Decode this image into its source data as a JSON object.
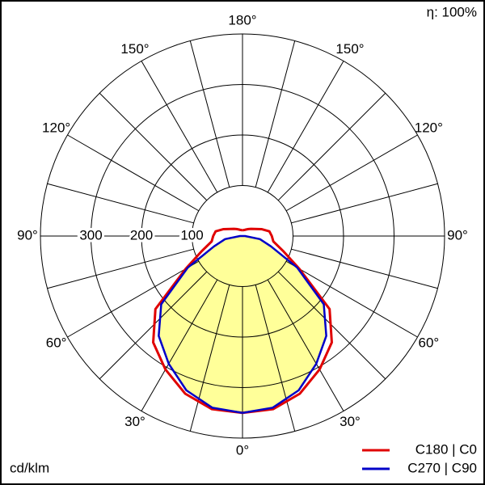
{
  "chart_data": {
    "type": "polar",
    "note_top_right": "η: 100%",
    "unit_label": "cd/klm",
    "angles": [
      0,
      10,
      20,
      30,
      40,
      50,
      60,
      70,
      80,
      90,
      100,
      110,
      120,
      130,
      140,
      150,
      160,
      170,
      180
    ],
    "series": [
      {
        "name": "C180 | C0",
        "color": "#e00000",
        "values": [
          350,
          348,
          332,
          305,
          275,
          225,
          130,
          85,
          62,
          58,
          54,
          40,
          28,
          22,
          18,
          15,
          13,
          12,
          11
        ]
      },
      {
        "name": "C270 | C90",
        "color": "#0000c8",
        "values": [
          350,
          345,
          325,
          292,
          258,
          210,
          125,
          60,
          35,
          5,
          0,
          0,
          0,
          0,
          0,
          0,
          0,
          0,
          0
        ]
      }
    ],
    "fill_color": "#ffff99",
    "rlim": [
      0,
      400
    ],
    "rticks": [
      100,
      200,
      300
    ],
    "angle_gridlines": [
      0,
      15,
      30,
      45,
      60,
      75,
      90,
      105,
      120,
      135,
      150,
      165,
      180
    ],
    "angle_ticks": [
      {
        "value": 0,
        "label": "0°"
      },
      {
        "value": 30,
        "label": "30°"
      },
      {
        "value": 60,
        "label": "60°"
      },
      {
        "value": 90,
        "label": "90°"
      },
      {
        "value": 120,
        "label": "120°"
      },
      {
        "value": 150,
        "label": "150°"
      },
      {
        "value": 180,
        "label": "180°"
      }
    ]
  }
}
